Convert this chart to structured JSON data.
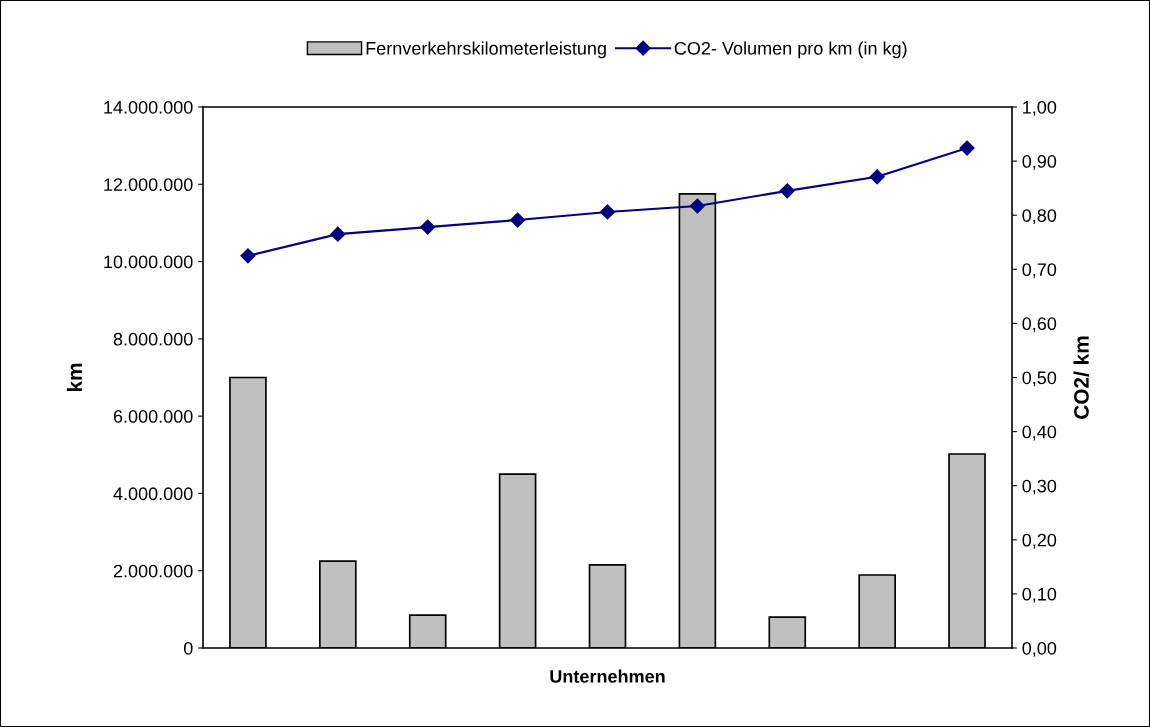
{
  "chart_data": {
    "type": "bar",
    "xlabel": "Unternehmen",
    "ylabel": "km",
    "y2label": "CO2/ km",
    "categories": [
      null,
      null,
      null,
      null,
      null,
      null,
      null,
      null,
      null
    ],
    "series": [
      {
        "name": "Fernverkehrskilometerleistung",
        "color": "#c0c0c0",
        "values": [
          7000000,
          2250000,
          850000,
          4500000,
          2150000,
          11750000,
          800000,
          1890000,
          5020000
        ]
      },
      {
        "name": "CO2- Volumen pro km (in kg)",
        "type": "line",
        "axis": "y2",
        "color": "#000080",
        "marker": "diamond",
        "values": [
          0.725,
          0.765,
          0.778,
          0.791,
          0.806,
          0.817,
          0.845,
          0.871,
          0.924
        ]
      }
    ],
    "ylim": [
      0,
      14000000
    ],
    "yticks": [
      0,
      {
        "value": 2000000,
        "label": "2.000.000"
      },
      {
        "value": 4000000,
        "label": "4.000.000"
      },
      {
        "value": 6000000,
        "label": "6.000.000"
      },
      {
        "value": 8000000,
        "label": "8.000.000"
      },
      {
        "value": 10000000,
        "label": "10.000.000"
      },
      {
        "value": 12000000,
        "label": "12.000.000"
      },
      {
        "value": 14000000,
        "label": "14.000.000"
      }
    ],
    "y2lim": [
      0,
      1
    ],
    "y2ticks": [
      {
        "value": 0,
        "label": "0,00"
      },
      {
        "value": 0.1,
        "label": "0,10"
      },
      {
        "value": 0.2,
        "label": "0,20"
      },
      {
        "value": 0.3,
        "label": "0,30"
      },
      {
        "value": 0.4,
        "label": "0,40"
      },
      {
        "value": 0.5,
        "label": "0,50"
      },
      {
        "value": 0.6,
        "label": "0,60"
      },
      {
        "value": 0.7,
        "label": "0,70"
      },
      {
        "value": 0.8,
        "label": "0,80"
      },
      {
        "value": 0.9,
        "label": "0,90"
      },
      {
        "value": 1,
        "label": "1,00"
      }
    ],
    "grid": false,
    "legend": "top"
  }
}
